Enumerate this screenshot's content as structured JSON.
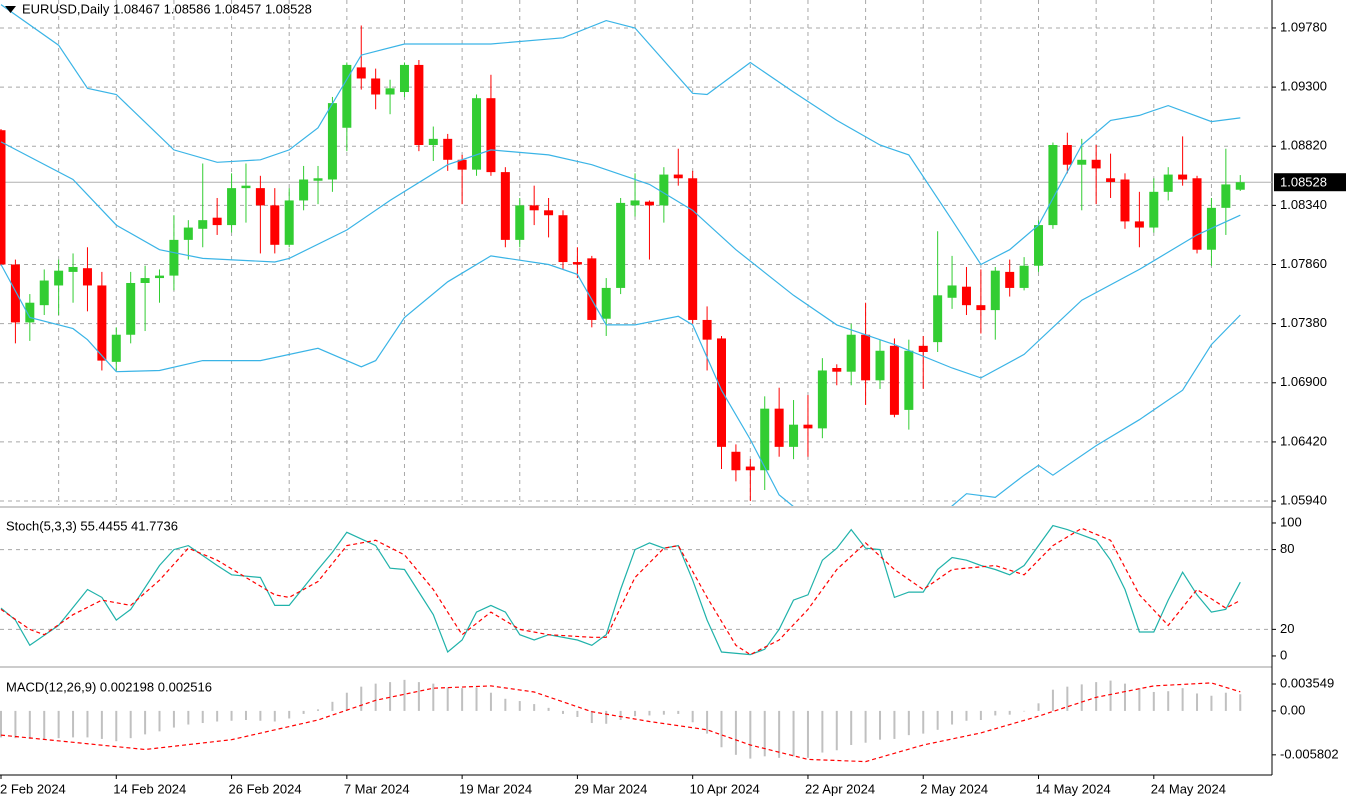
{
  "chart_data": [
    {
      "type": "candlestick",
      "title": "EURUSD,Daily  1.08467 1.08586 1.08457 1.08528",
      "categories": [
        "2 Feb 2024",
        null,
        null,
        null,
        null,
        null,
        null,
        null,
        "14 Feb 2024",
        null,
        null,
        null,
        null,
        null,
        null,
        null,
        "26 Feb 2024",
        null,
        null,
        null,
        null,
        null,
        null,
        null,
        "7 Mar 2024",
        null,
        null,
        null,
        null,
        null,
        null,
        null,
        "19 Mar 2024",
        null,
        null,
        null,
        null,
        null,
        null,
        null,
        "29 Mar 2024",
        null,
        null,
        null,
        null,
        null,
        null,
        null,
        "10 Apr 2024",
        null,
        null,
        null,
        null,
        null,
        null,
        null,
        "22 Apr 2024",
        null,
        null,
        null,
        null,
        null,
        null,
        null,
        "2 May 2024",
        null,
        null,
        null,
        null,
        null,
        null,
        null,
        "14 May 2024",
        null,
        null,
        null,
        null,
        null,
        null,
        null,
        "24 May 2024",
        null,
        null,
        null,
        null,
        null,
        null
      ],
      "open": [
        1.0895,
        1.0786,
        1.0739,
        1.0753,
        1.0769,
        1.078,
        1.0783,
        1.0769,
        1.0707,
        1.0729,
        1.0771,
        1.0775,
        1.0777,
        1.0806,
        1.0815,
        1.0824,
        1.0818,
        1.0848,
        1.0848,
        1.0834,
        1.0802,
        1.0838,
        1.0854,
        1.0855,
        1.0897,
        1.0946,
        1.0937,
        1.0924,
        1.0926,
        1.0948,
        1.0883,
        1.0888,
        1.0871,
        1.0863,
        1.0921,
        1.0861,
        1.0806,
        1.0834,
        1.083,
        1.0826,
        1.0788,
        1.0791,
        1.0742,
        1.0767,
        1.0834,
        1.0837,
        1.0834,
        1.0859,
        1.0856,
        1.0741,
        1.0726,
        1.0634,
        1.0622,
        1.0619,
        1.0669,
        1.0638,
        1.0656,
        1.0653,
        1.0702,
        1.0699,
        1.0729,
        1.0692,
        1.072,
        1.0668,
        1.072,
        1.0723,
        1.0759,
        1.0768,
        1.0753,
        1.0749,
        1.078,
        1.0767,
        1.0785,
        1.0818,
        1.0883,
        1.0867,
        1.0871,
        1.0856,
        1.0855,
        1.0821,
        1.0816,
        1.0845,
        1.0859,
        1.0856,
        1.0798,
        1.0832,
        1.08467
      ],
      "high": [
        1.0896,
        1.079,
        1.0762,
        1.0782,
        1.079,
        1.0795,
        1.08,
        1.078,
        1.0735,
        1.078,
        1.0785,
        1.0782,
        1.0826,
        1.0822,
        1.0868,
        1.084,
        1.086,
        1.0868,
        1.0858,
        1.0848,
        1.0848,
        1.0866,
        1.0866,
        1.0922,
        1.095,
        1.098,
        1.0945,
        1.0936,
        1.095,
        1.0952,
        1.0898,
        1.0892,
        1.0875,
        1.0924,
        1.094,
        1.0865,
        1.084,
        1.085,
        1.084,
        1.083,
        1.08,
        1.0793,
        1.0775,
        1.084,
        1.086,
        1.0838,
        1.0865,
        1.088,
        1.0862,
        1.0752,
        1.0728,
        1.064,
        1.0628,
        1.0679,
        1.0686,
        1.0676,
        1.068,
        1.071,
        1.0705,
        1.0738,
        1.0755,
        1.0725,
        1.0726,
        1.0725,
        1.0728,
        1.0813,
        1.0793,
        1.0784,
        1.0782,
        1.0784,
        1.079,
        1.0792,
        1.0822,
        1.0885,
        1.0893,
        1.0888,
        1.0883,
        1.0876,
        1.086,
        1.0845,
        1.0856,
        1.0865,
        1.089,
        1.0858,
        1.084,
        1.088,
        1.08586
      ],
      "low": [
        1.0785,
        1.0722,
        1.0724,
        1.0745,
        1.0745,
        1.0755,
        1.0748,
        1.07,
        1.07,
        1.0722,
        1.0732,
        1.0755,
        1.0765,
        1.079,
        1.08,
        1.081,
        1.0812,
        1.082,
        1.0795,
        1.0795,
        1.08,
        1.083,
        1.0835,
        1.0845,
        1.0878,
        1.0928,
        1.0912,
        1.0908,
        1.0922,
        1.0878,
        1.087,
        1.0862,
        1.0835,
        1.0858,
        1.0858,
        1.08,
        1.08,
        1.0818,
        1.0808,
        1.0782,
        1.0775,
        1.0735,
        1.0728,
        1.0762,
        1.0825,
        1.079,
        1.082,
        1.085,
        1.0738,
        1.07,
        1.062,
        1.061,
        1.0594,
        1.0603,
        1.063,
        1.0628,
        1.063,
        1.0645,
        1.0688,
        1.0688,
        1.0672,
        1.0685,
        1.0662,
        1.0652,
        1.0685,
        1.0715,
        1.075,
        1.0745,
        1.073,
        1.0725,
        1.076,
        1.0765,
        1.078,
        1.0815,
        1.086,
        1.083,
        1.0835,
        1.084,
        1.0815,
        1.08,
        1.0812,
        1.0838,
        1.085,
        1.0795,
        1.0785,
        1.081,
        1.08457
      ],
      "close": [
        1.0786,
        1.0739,
        1.0755,
        1.0773,
        1.0781,
        1.0784,
        1.0769,
        1.0708,
        1.0729,
        1.0771,
        1.0775,
        1.0777,
        1.0806,
        1.0816,
        1.0822,
        1.0818,
        1.0848,
        1.085,
        1.0834,
        1.0802,
        1.0838,
        1.0855,
        1.0856,
        1.0917,
        1.0948,
        1.0937,
        1.0924,
        1.0929,
        1.0948,
        1.0883,
        1.0888,
        1.0871,
        1.0863,
        1.0921,
        1.0861,
        1.0806,
        1.0834,
        1.083,
        1.0826,
        1.0788,
        1.0786,
        1.0741,
        1.0767,
        1.0836,
        1.0838,
        1.0834,
        1.0859,
        1.0856,
        1.0741,
        1.0725,
        1.0638,
        1.0619,
        1.0619,
        1.0669,
        1.0638,
        1.0656,
        1.0653,
        1.07,
        1.0699,
        1.0729,
        1.0692,
        1.0716,
        1.0664,
        1.0716,
        1.0715,
        1.0761,
        1.0769,
        1.0753,
        1.0749,
        1.0781,
        1.0767,
        1.0785,
        1.0818,
        1.0883,
        1.0867,
        1.0871,
        1.0864,
        1.0853,
        1.0821,
        1.0816,
        1.0845,
        1.0859,
        1.0855,
        1.0798,
        1.0832,
        1.0851,
        1.08528
      ],
      "up_color": "#32cd32",
      "down_color": "#ff0000",
      "overlays": [
        {
          "color": "#3ab4e6",
          "x": [
            0,
            4,
            6,
            8,
            12,
            15,
            18,
            20,
            22,
            25,
            28,
            34,
            39,
            42,
            44,
            48,
            49,
            52,
            55,
            58,
            61,
            63,
            66,
            68,
            70,
            72,
            75,
            77,
            79,
            81,
            84,
            86
          ],
          "values": [
            1.0997,
            1.0964,
            1.0929,
            1.0924,
            1.0879,
            1.0869,
            1.0871,
            1.0879,
            1.0897,
            1.0956,
            1.0965,
            1.0965,
            1.097,
            1.0984,
            1.0978,
            1.0925,
            1.0924,
            1.095,
            1.0926,
            1.0903,
            1.0883,
            1.0875,
            1.0822,
            1.0786,
            1.0798,
            1.0818,
            1.0883,
            1.0903,
            1.0907,
            1.0915,
            1.0902,
            1.0905
          ]
        },
        {
          "color": "#3ab4e6",
          "x": [
            0,
            5,
            8,
            11,
            14,
            19,
            20,
            24,
            27,
            31,
            34,
            38,
            41,
            45,
            48,
            51,
            55,
            58,
            62,
            66,
            68,
            71,
            75,
            79,
            83,
            86
          ],
          "values": [
            1.08855,
            1.0855,
            1.0818,
            1.0798,
            1.0791,
            1.0788,
            1.0791,
            1.0814,
            1.0838,
            1.0867,
            1.0879,
            1.0875,
            1.0867,
            1.0851,
            1.083,
            1.0798,
            1.0761,
            1.0737,
            1.0721,
            1.0702,
            1.0694,
            1.0713,
            1.0757,
            1.0782,
            1.081,
            1.0826
          ]
        },
        {
          "color": "#3ab4e6",
          "x": [
            0,
            2,
            5,
            6,
            8,
            11,
            14,
            18,
            22,
            25,
            26,
            28,
            31,
            34,
            38,
            40,
            42,
            44,
            47,
            48,
            50,
            52,
            54,
            56,
            60,
            64,
            66,
            67,
            69,
            71,
            72,
            73,
            76,
            79,
            82,
            84,
            86
          ],
          "values": [
            1.0786,
            1.0743,
            1.0734,
            1.0725,
            1.0699,
            1.07,
            1.0708,
            1.0708,
            1.0718,
            1.0703,
            1.0708,
            1.0743,
            1.0772,
            1.0793,
            1.0786,
            1.0778,
            1.0737,
            1.0737,
            1.0744,
            1.0737,
            1.0684,
            1.0644,
            1.0599,
            1.058,
            1.056,
            1.0575,
            1.059,
            1.06,
            1.0597,
            1.0615,
            1.0623,
            1.0615,
            1.0639,
            1.066,
            1.0684,
            1.0721,
            1.0745
          ]
        }
      ],
      "last_price": {
        "value": 1.08528,
        "label": "1.08528"
      },
      "ylim": [
        1.05908,
        1.10007
      ],
      "yticks": [
        {
          "value": 1.0978,
          "label": "1.09780"
        },
        {
          "value": 1.093,
          "label": "1.09300"
        },
        {
          "value": 1.0882,
          "label": "1.08820"
        },
        {
          "value": 1.0834,
          "label": "1.08340"
        },
        {
          "value": 1.0786,
          "label": "1.07860"
        },
        {
          "value": 1.0738,
          "label": "1.07380"
        },
        {
          "value": 1.069,
          "label": "1.06900"
        },
        {
          "value": 1.0642,
          "label": "1.06420"
        },
        {
          "value": 1.0594,
          "label": "1.05940"
        }
      ],
      "grid": true
    },
    {
      "type": "line",
      "title": "Stoch(5,3,3) 55.4455 41.7736",
      "series": [
        {
          "color": "#20b2aa",
          "dashed": false,
          "x": [
            0,
            1,
            2,
            4,
            6,
            7,
            8,
            9,
            11,
            12,
            13,
            15,
            16,
            18,
            19,
            20,
            22,
            23,
            24,
            26,
            27,
            28,
            30,
            31,
            32,
            33,
            34,
            35,
            36,
            37,
            38,
            40,
            41,
            42,
            43,
            44,
            45,
            46,
            47,
            48,
            49,
            50,
            52,
            53,
            54,
            55,
            56,
            57,
            58,
            59,
            60,
            61,
            62,
            63,
            64,
            65,
            66,
            67,
            68,
            69,
            70,
            71,
            72,
            73,
            74,
            75,
            76,
            77,
            78,
            79,
            80,
            81,
            82,
            83,
            84,
            85,
            86
          ],
          "values": [
            36,
            27,
            8,
            23,
            50,
            44,
            27,
            35,
            68,
            80,
            83,
            68,
            61,
            59,
            38,
            38,
            65,
            78,
            93,
            83,
            66,
            65,
            31,
            3,
            12,
            33,
            38,
            33,
            16,
            12,
            16,
            12,
            8,
            16,
            50,
            80,
            85,
            81,
            83,
            57,
            27,
            3,
            1,
            5,
            20,
            42,
            46,
            72,
            81,
            95,
            81,
            80,
            44,
            48,
            48,
            65,
            74,
            72,
            68,
            65,
            61,
            68,
            83,
            98,
            95,
            91,
            87,
            72,
            50,
            18,
            18,
            42,
            63,
            46,
            33,
            35,
            55.4455
          ]
        },
        {
          "color": "#ff0000",
          "dashed": true,
          "x": [
            0,
            2,
            3,
            5,
            7,
            9,
            11,
            13,
            15,
            17,
            19,
            20,
            22,
            24,
            26,
            28,
            30,
            32,
            34,
            36,
            38,
            41,
            42,
            44,
            46,
            47,
            49,
            51,
            52,
            54,
            56,
            58,
            60,
            62,
            64,
            66,
            69,
            71,
            73,
            75,
            77,
            79,
            81,
            83,
            85,
            86
          ],
          "values": [
            35,
            20,
            16,
            31,
            42,
            38,
            57,
            81,
            72,
            59,
            46,
            44,
            56,
            83,
            87,
            76,
            50,
            16,
            33,
            20,
            16,
            14,
            14,
            59,
            81,
            83,
            44,
            8,
            1,
            12,
            35,
            65,
            85,
            65,
            50,
            65,
            68,
            61,
            83,
            96,
            87,
            46,
            23,
            50,
            36,
            41.7736
          ]
        }
      ],
      "levels": [
        80,
        20
      ],
      "ylim": [
        -6.8,
        107.5
      ],
      "yticks": [
        100,
        80,
        20,
        0
      ]
    },
    {
      "type": "macd",
      "title": "MACD(12,26,9) 0.002198 0.002516",
      "histogram": {
        "color": "#c0c0c0",
        "values": [
          -0.0035,
          -0.0036,
          -0.0037,
          -0.0037,
          -0.0036,
          -0.0035,
          -0.0035,
          -0.0037,
          -0.004,
          -0.0036,
          -0.0031,
          -0.0027,
          -0.0022,
          -0.0018,
          -0.0016,
          -0.0014,
          -0.0013,
          -0.0012,
          -0.0013,
          -0.0014,
          -0.001,
          -0.0004,
          0.0002,
          0.0012,
          0.0024,
          0.0032,
          0.0036,
          0.0038,
          0.0041,
          0.0038,
          0.0036,
          0.0031,
          0.003,
          0.0031,
          0.0024,
          0.0016,
          0.0013,
          0.0009,
          0.0004,
          -0.0004,
          -0.0008,
          -0.0016,
          -0.0017,
          -0.0012,
          -0.0007,
          -0.0006,
          -0.0005,
          -0.0004,
          -0.0015,
          -0.003,
          -0.0048,
          -0.0058,
          -0.0063,
          -0.006,
          -0.0062,
          -0.006,
          -0.0062,
          -0.0055,
          -0.0052,
          -0.0045,
          -0.0042,
          -0.0038,
          -0.0037,
          -0.0032,
          -0.003,
          -0.0025,
          -0.0018,
          -0.0013,
          -0.0012,
          -0.0006,
          -0.0005,
          0.0,
          0.001,
          0.0028,
          0.0032,
          0.0035,
          0.0038,
          0.004,
          0.0036,
          0.003,
          0.0025,
          0.0026,
          0.003,
          0.0023,
          0.002,
          0.0024,
          0.002198
        ]
      },
      "signal": {
        "color": "#ff0000",
        "dashed": true,
        "x": [
          0,
          10,
          16,
          22,
          26,
          30,
          34,
          37,
          41,
          45,
          49,
          52,
          56,
          60,
          64,
          68,
          72,
          76,
          80,
          84,
          86
        ],
        "values": [
          -0.0032,
          -0.0051,
          -0.0038,
          -0.0012,
          0.0014,
          0.003,
          0.0033,
          0.0025,
          -0.0001,
          -0.0014,
          -0.0025,
          -0.0045,
          -0.0064,
          -0.0067,
          -0.0045,
          -0.0029,
          -0.0007,
          0.0018,
          0.0033,
          0.0037,
          0.002516
        ]
      },
      "ylim": [
        -0.0082,
        0.0054
      ],
      "yticks": [
        0.003549,
        {
          "value": 0,
          "label": "0.00"
        },
        -0.005802
      ]
    }
  ]
}
